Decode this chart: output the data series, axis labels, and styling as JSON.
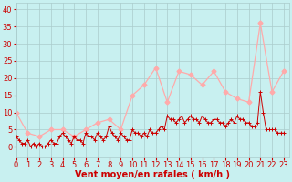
{
  "xlabel": "Vent moyen/en rafales ( km/h )",
  "background_color": "#c8f0f0",
  "grid_color": "#aacccc",
  "ylim": [
    -3,
    42
  ],
  "xlim": [
    0,
    23.5
  ],
  "yticks": [
    0,
    5,
    10,
    15,
    20,
    25,
    30,
    35,
    40
  ],
  "xtick_labels": [
    "0",
    "1",
    "2",
    "3",
    "4",
    "5",
    "6",
    "7",
    "8",
    "9",
    "10",
    "11",
    "12",
    "13",
    "14",
    "15",
    "16",
    "17",
    "18",
    "19",
    "20",
    "21",
    "22",
    "23"
  ],
  "xtick_pos": [
    0,
    1,
    2,
    3,
    4,
    5,
    6,
    7,
    8,
    9,
    10,
    11,
    12,
    13,
    14,
    15,
    16,
    17,
    18,
    19,
    20,
    21,
    22,
    23
  ],
  "gust_x": [
    0,
    1,
    2,
    3,
    4,
    5,
    6,
    7,
    8,
    9,
    10,
    11,
    12,
    13,
    14,
    15,
    16,
    17,
    18,
    19,
    20,
    21,
    22,
    23
  ],
  "gust_y": [
    10,
    4,
    3,
    5,
    5,
    3,
    5,
    7,
    8,
    5,
    15,
    18,
    23,
    13,
    22,
    21,
    18,
    22,
    16,
    14,
    13,
    36,
    16,
    22
  ],
  "avg_x": [
    0.0,
    0.25,
    0.5,
    0.75,
    1.0,
    1.25,
    1.5,
    1.75,
    2.0,
    2.25,
    2.5,
    2.75,
    3.0,
    3.25,
    3.5,
    3.75,
    4.0,
    4.25,
    4.5,
    4.75,
    5.0,
    5.25,
    5.5,
    5.75,
    6.0,
    6.25,
    6.5,
    6.75,
    7.0,
    7.25,
    7.5,
    7.75,
    8.0,
    8.25,
    8.5,
    8.75,
    9.0,
    9.25,
    9.5,
    9.75,
    10.0,
    10.25,
    10.5,
    10.75,
    11.0,
    11.25,
    11.5,
    11.75,
    12.0,
    12.25,
    12.5,
    12.75,
    13.0,
    13.25,
    13.5,
    13.75,
    14.0,
    14.25,
    14.5,
    14.75,
    15.0,
    15.25,
    15.5,
    15.75,
    16.0,
    16.25,
    16.5,
    16.75,
    17.0,
    17.25,
    17.5,
    17.75,
    18.0,
    18.25,
    18.5,
    18.75,
    19.0,
    19.25,
    19.5,
    19.75,
    20.0,
    20.25,
    20.5,
    20.75,
    21.0,
    21.25,
    21.5,
    21.75,
    22.0,
    22.25,
    22.5,
    22.75,
    23.0
  ],
  "avg_y": [
    3,
    2,
    1,
    1,
    2,
    0,
    1,
    0,
    1,
    0,
    0,
    1,
    2,
    1,
    1,
    3,
    4,
    3,
    2,
    1,
    3,
    2,
    2,
    1,
    4,
    3,
    3,
    2,
    4,
    3,
    2,
    3,
    6,
    4,
    3,
    2,
    4,
    3,
    2,
    2,
    5,
    4,
    4,
    3,
    4,
    3,
    5,
    4,
    4,
    5,
    6,
    5,
    9,
    8,
    8,
    7,
    8,
    9,
    7,
    8,
    9,
    8,
    8,
    7,
    9,
    8,
    7,
    7,
    8,
    8,
    7,
    7,
    6,
    7,
    8,
    7,
    9,
    8,
    8,
    7,
    7,
    6,
    6,
    7,
    16,
    10,
    5,
    5,
    5,
    5,
    4,
    4,
    4
  ],
  "avg_color": "#cc0000",
  "gust_color": "#ffaaaa",
  "xlabel_color": "#cc0000",
  "xlabel_fontsize": 7,
  "tick_color": "#cc0000",
  "tick_fontsize": 6,
  "ytick_fontsize": 6
}
